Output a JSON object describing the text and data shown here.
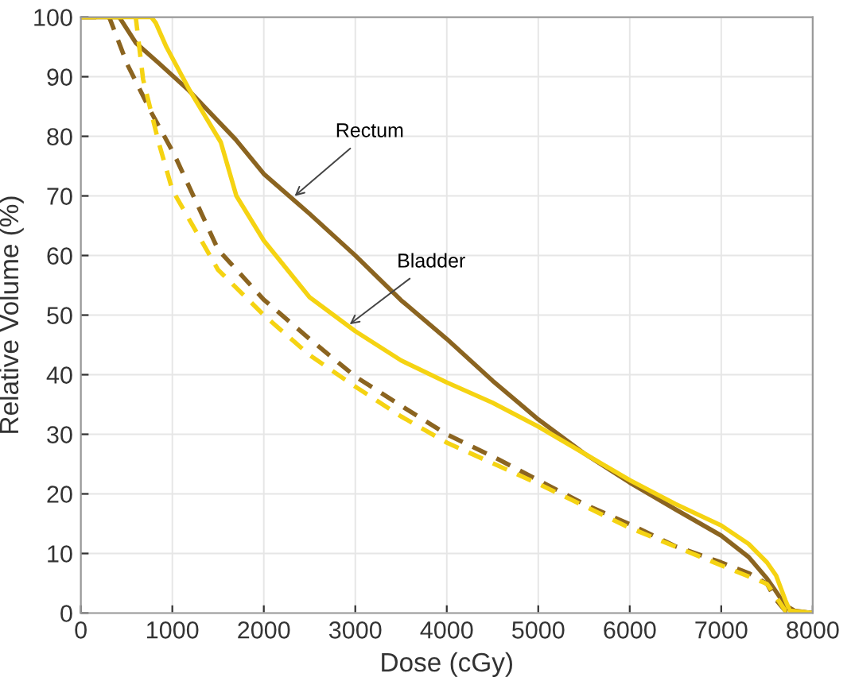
{
  "chart_data": {
    "type": "line",
    "xlabel": "Dose (cGy)",
    "ylabel": "Relative Volume (%)",
    "xlim": [
      0,
      8000
    ],
    "xticks": [
      0,
      1000,
      2000,
      3000,
      4000,
      5000,
      6000,
      7000,
      8000
    ],
    "ylim": [
      0,
      100
    ],
    "yticks": [
      0,
      10,
      20,
      30,
      40,
      50,
      60,
      70,
      80,
      90,
      100
    ],
    "grid": true,
    "legend": false,
    "annotations": [
      {
        "text": "Rectum",
        "x": 2300,
        "y": 69.5
      },
      {
        "text": "Bladder",
        "x": 2900,
        "y": 48
      }
    ],
    "series": [
      {
        "color": "#8b6420",
        "line_style": "solid",
        "x": [
          0,
          420,
          600,
          850,
          1180,
          1690,
          2000,
          2500,
          3000,
          3500,
          4000,
          4500,
          5000,
          5500,
          6000,
          6500,
          7000,
          7300,
          7500,
          7600,
          7700,
          7800,
          8000
        ],
        "values": [
          100,
          100,
          95.7,
          92.3,
          87.7,
          79.5,
          73.7,
          67,
          60,
          52.5,
          46,
          39,
          32.5,
          26.8,
          21.9,
          17.4,
          13,
          9.4,
          5.8,
          3.6,
          1.3,
          0.4,
          0
        ]
      },
      {
        "color": "#f5d312",
        "line_style": "solid",
        "x": [
          0,
          770,
          820,
          935,
          1190,
          1530,
          1700,
          2000,
          2500,
          3000,
          3500,
          4000,
          4500,
          5000,
          5500,
          6000,
          6500,
          7000,
          7300,
          7500,
          7600,
          7700,
          7750,
          8000
        ],
        "values": [
          100,
          100,
          99,
          95,
          87.7,
          79,
          70,
          62.5,
          53,
          47.3,
          42.4,
          38.7,
          35.3,
          31.3,
          26.8,
          22.3,
          18.3,
          14.7,
          11.6,
          8.5,
          6.3,
          2.2,
          0.4,
          0
        ]
      },
      {
        "color": "#8b6420",
        "line_style": "dashed",
        "x": [
          0,
          310,
          510,
          770,
          1020,
          1500,
          2000,
          2500,
          3000,
          3500,
          4000,
          4500,
          5000,
          5500,
          6000,
          6500,
          7000,
          7300,
          7500,
          7600,
          7700,
          8000
        ],
        "values": [
          100,
          100,
          92,
          84,
          77,
          61,
          52.6,
          46,
          39.7,
          34.8,
          30,
          26.3,
          22.3,
          18.3,
          14.9,
          11.2,
          8.5,
          6.7,
          4.9,
          2.2,
          0.4,
          0
        ]
      },
      {
        "color": "#f5d312",
        "line_style": "dashed",
        "x": [
          0,
          600,
          680,
          850,
          1000,
          1500,
          2000,
          2500,
          3000,
          3500,
          4000,
          5000,
          6000,
          7000,
          7500,
          7600,
          7700,
          8000
        ],
        "values": [
          100,
          100,
          89.6,
          79,
          71,
          57.6,
          50,
          43.3,
          38,
          33,
          28.6,
          21.7,
          14.3,
          8,
          4.9,
          2.7,
          0.4,
          0
        ]
      }
    ]
  }
}
